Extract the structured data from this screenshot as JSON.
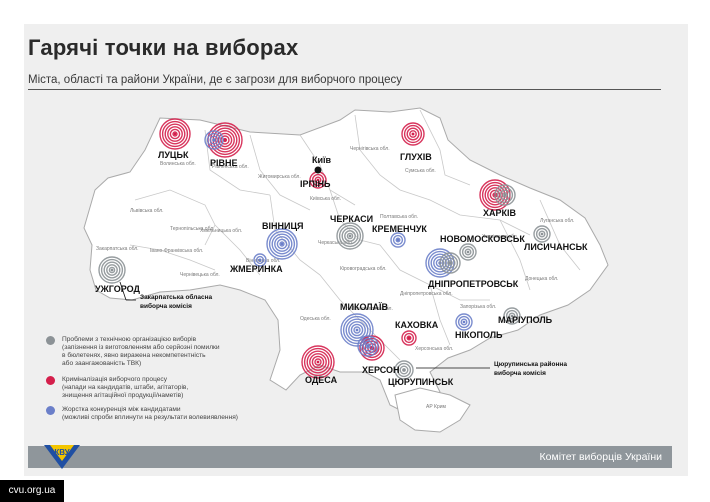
{
  "title": "Гарячі точки на виборах",
  "subtitle": "Міста, області та райони України, де є загрози для виборчого процесу",
  "colors": {
    "tech": "#8c9296",
    "crime": "#d41f4b",
    "competition": "#6b7fc9"
  },
  "cities": [
    {
      "name": "ЛУЦЬК",
      "type": "crime"
    },
    {
      "name": "РІВНЕ",
      "type": "crime+competition"
    },
    {
      "name": "ГЛУХІВ",
      "type": "crime"
    },
    {
      "name": "Київ",
      "type": "capital"
    },
    {
      "name": "ІРПІНЬ",
      "type": "crime"
    },
    {
      "name": "ХАРКІВ",
      "type": "crime+tech"
    },
    {
      "name": "ЧЕРКАСИ",
      "type": "tech"
    },
    {
      "name": "ВІННИЦЯ",
      "type": "competition"
    },
    {
      "name": "КРЕМЕНЧУК",
      "type": "competition"
    },
    {
      "name": "НОВОМОСКОВСЬК",
      "type": "tech"
    },
    {
      "name": "ЛИСИЧАНСЬК",
      "type": "tech"
    },
    {
      "name": "ЖМЕРИНКА",
      "type": "competition"
    },
    {
      "name": "ДНІПРОПЕТРОВСЬК",
      "type": "tech+competition"
    },
    {
      "name": "УЖГОРОД",
      "type": "tech"
    },
    {
      "name": "МИКОЛАЇВ",
      "type": "competition"
    },
    {
      "name": "КАХОВКА",
      "type": "crime"
    },
    {
      "name": "НІКОПОЛЬ",
      "type": "competition"
    },
    {
      "name": "МАРІУПОЛЬ",
      "type": "tech"
    },
    {
      "name": "ОДЕСА",
      "type": "crime"
    },
    {
      "name": "ХЕРСОН",
      "type": "crime+competition"
    },
    {
      "name": "ЦЮРУПИНСЬК",
      "type": "tech"
    }
  ],
  "oblasts": [
    "Волинська обл.",
    "Рівненська обл.",
    "Житомирська обл.",
    "Київська обл.",
    "Чернігівська обл.",
    "Сумська обл.",
    "Харківська обл.",
    "Полтавська обл.",
    "Черкаська обл.",
    "Вінницька обл.",
    "Хмельницька обл.",
    "Тернопільська обл.",
    "Львівська обл.",
    "Закарпатська обл.",
    "Івано-Франківська обл.",
    "Чернівецька обл.",
    "Кіровоградська обл.",
    "Одеська обл.",
    "Миколаївська обл.",
    "Херсонська обл.",
    "Дніпропетровська обл.",
    "Запорізька обл.",
    "Донецька обл.",
    "Луганська обл.",
    "АР Крим"
  ],
  "annotations": {
    "zakarpattia": [
      "Закарпатська обласна",
      "виборча комісія"
    ],
    "tsiurupynsk": [
      "Цюрупинська районна",
      "виборча комісія"
    ]
  },
  "legend": [
    {
      "type": "tech",
      "lines": [
        "Проблеми з технічною організацією виборів",
        "(запізнення із виготовленням або серйозні помилки",
        "в бюлетенях, явно виражена некомпетентність",
        "або заангажованість ТВК)"
      ]
    },
    {
      "type": "crime",
      "lines": [
        "Криміналізація виборчого процесу",
        "(напади на кандидатів, штаби, агітаторів,",
        "знищення агітаційної продукції/наметів)"
      ]
    },
    {
      "type": "competition",
      "lines": [
        "Жорстка конкуренція між кандидатами",
        "(можливі спроби вплинути на результати волевиявлення)"
      ]
    }
  ],
  "footer": "Комітет виборців України",
  "logo_text": "КВУ",
  "watermark": "cvu.org.ua"
}
